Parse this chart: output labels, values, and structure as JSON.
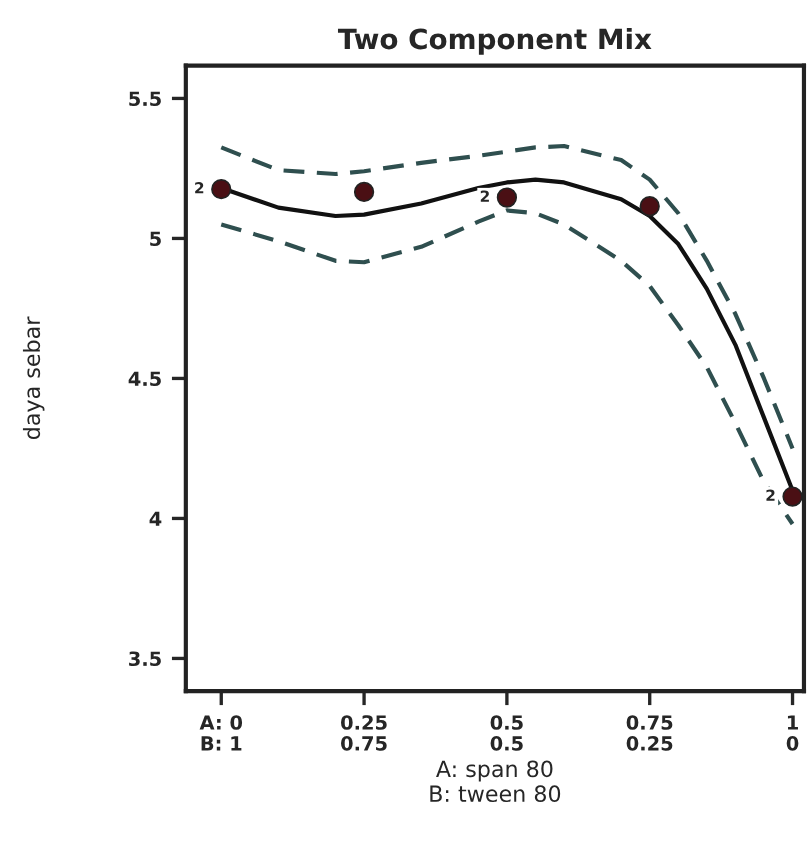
{
  "chart_data": {
    "type": "line",
    "title": "Two Component Mix",
    "xlabel": "A: span 80\nB: tween 80",
    "ylabel": "daya sebar",
    "xlim": [
      -0.062,
      1.02
    ],
    "ylim": [
      3.383,
      5.617
    ],
    "xticks": [
      {
        "value": 0,
        "label": "A: 0"
      },
      0.25,
      0.5,
      0.75,
      1
    ],
    "x2lim": [
      1.062,
      -0.02
    ],
    "x2ticks": [
      {
        "value": 1,
        "label": "B: 1"
      },
      0.75,
      0.5,
      0.25,
      0
    ],
    "yticks": [
      3.5,
      4,
      4.5,
      5,
      5.5
    ],
    "grid": false,
    "series": [
      {
        "color": "#111111",
        "line_style": "solid",
        "x": [
          0,
          0.1,
          0.2,
          0.25,
          0.35,
          0.45,
          0.5,
          0.55,
          0.6,
          0.7,
          0.75,
          0.8,
          0.85,
          0.9,
          0.95,
          1.0
        ],
        "values": [
          5.18,
          5.11,
          5.08,
          5.085,
          5.125,
          5.18,
          5.2,
          5.21,
          5.2,
          5.14,
          5.08,
          4.98,
          4.82,
          4.62,
          4.36,
          4.1
        ]
      },
      {
        "color": "#2f4f4f",
        "line_style": "dashed",
        "x": [
          0,
          0.1,
          0.2,
          0.25,
          0.35,
          0.45,
          0.5,
          0.55,
          0.6,
          0.7,
          0.75,
          0.8,
          0.85,
          0.9,
          0.95,
          1.0
        ],
        "values": [
          5.05,
          4.99,
          4.92,
          4.915,
          4.97,
          5.06,
          5.1,
          5.09,
          5.05,
          4.92,
          4.83,
          4.69,
          4.54,
          4.34,
          4.13,
          3.98
        ]
      },
      {
        "color": "#2f4f4f",
        "line_style": "dashed",
        "x": [
          0,
          0.1,
          0.2,
          0.25,
          0.35,
          0.45,
          0.5,
          0.55,
          0.6,
          0.7,
          0.75,
          0.8,
          0.85,
          0.9,
          0.95,
          1.0
        ],
        "values": [
          5.325,
          5.244,
          5.23,
          5.24,
          5.27,
          5.295,
          5.31,
          5.325,
          5.33,
          5.28,
          5.21,
          5.09,
          4.92,
          4.73,
          4.5,
          4.25
        ]
      },
      {
        "type": "scatter",
        "color": "#4a0f14",
        "marker": "circle",
        "x": [
          0,
          0.25,
          0.5,
          0.75,
          1
        ],
        "values": [
          5.176,
          5.166,
          5.146,
          5.115,
          4.078
        ]
      }
    ],
    "annotations": [
      {
        "text": "2",
        "x": 0,
        "y": 5.176
      },
      {
        "text": "2",
        "x": 0.5,
        "y": 5.146
      },
      {
        "text": "2",
        "x": 1,
        "y": 4.078
      }
    ]
  }
}
